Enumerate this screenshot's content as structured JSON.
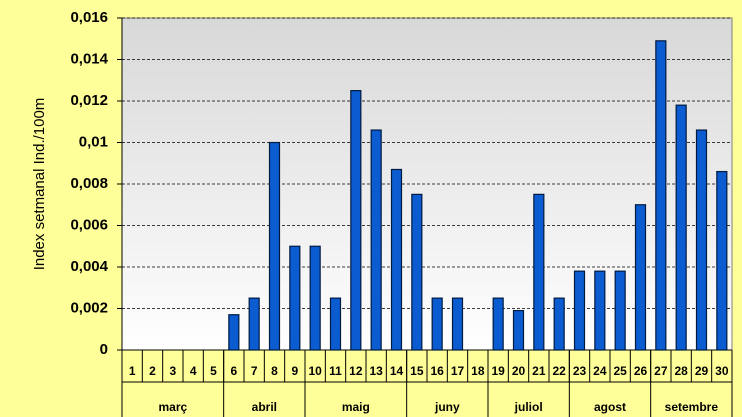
{
  "chart_data": {
    "type": "bar",
    "y_label": "Index setmanal Ind./100m",
    "categories": [
      "1",
      "2",
      "3",
      "4",
      "5",
      "6",
      "7",
      "8",
      "9",
      "10",
      "11",
      "12",
      "13",
      "14",
      "15",
      "16",
      "17",
      "18",
      "19",
      "20",
      "21",
      "22",
      "23",
      "24",
      "25",
      "26",
      "27",
      "28",
      "29",
      "30"
    ],
    "values": [
      0,
      0,
      0,
      0,
      0,
      0.0017,
      0.0025,
      0.01,
      0.005,
      0.005,
      0.0025,
      0.0125,
      0.0106,
      0.0087,
      0.0075,
      0.0025,
      0.0025,
      0,
      0.0025,
      0.0019,
      0.0075,
      0.0025,
      0.0038,
      0.0038,
      0.0038,
      0.007,
      0.0149,
      0.0118,
      0.0106,
      0.0086
    ],
    "groups": [
      {
        "label": "març",
        "from": "1",
        "to": "5"
      },
      {
        "label": "abril",
        "from": "6",
        "to": "9"
      },
      {
        "label": "maig",
        "from": "10",
        "to": "14"
      },
      {
        "label": "juny",
        "from": "15",
        "to": "18"
      },
      {
        "label": "juliol",
        "from": "19",
        "to": "22"
      },
      {
        "label": "agost",
        "from": "23",
        "to": "26"
      },
      {
        "label": "setembre",
        "from": "27",
        "to": "30"
      }
    ],
    "color": "#0a5cd0",
    "ylim": [
      0,
      0.016
    ],
    "yticks": [
      0,
      {
        "value": 0.002,
        "label": "0,002"
      },
      {
        "value": 0.004,
        "label": "0,004"
      },
      {
        "value": 0.006,
        "label": "0,006"
      },
      {
        "value": 0.008,
        "label": "0,008"
      },
      {
        "value": 0.01,
        "label": "0,01"
      },
      {
        "value": 0.012,
        "label": "0,012"
      },
      {
        "value": 0.014,
        "label": "0,014"
      },
      {
        "value": 0.016,
        "label": "0,016"
      }
    ],
    "grid": true
  }
}
